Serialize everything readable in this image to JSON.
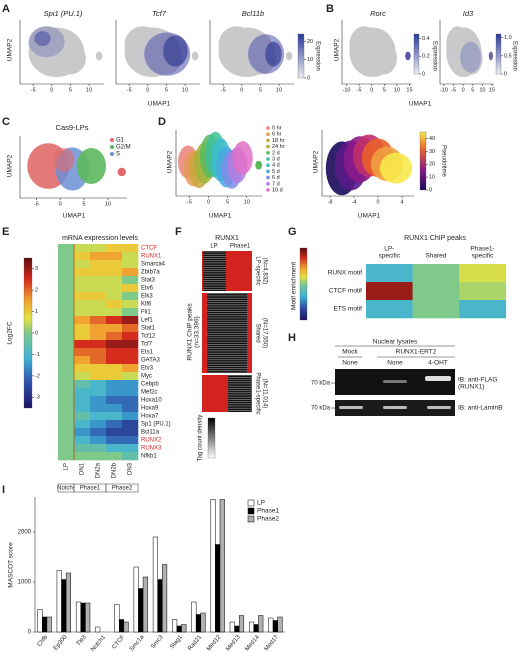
{
  "panels": {
    "A": {
      "letter": "A",
      "ylabel": "UMAP2",
      "xlabel": "UMAP1",
      "plots": [
        {
          "title": "Spi1 (PU.1)",
          "xlim": [
            -8,
            14
          ],
          "xticks": [
            -5,
            0,
            5,
            10
          ]
        },
        {
          "title": "Tcf7",
          "xlim": [
            -8,
            14
          ],
          "xticks": [
            -5,
            0,
            5,
            10
          ]
        },
        {
          "title": "Bcl11b",
          "xlim": [
            -8,
            14
          ],
          "xticks": [
            -5,
            0,
            5,
            10
          ]
        }
      ],
      "colorbar": {
        "label": "Expression",
        "lim": [
          0,
          24
        ],
        "ticks": [
          0,
          10,
          20
        ]
      }
    },
    "B": {
      "letter": "B",
      "ylabel": "UMAP2",
      "xlabel": "UMAP1",
      "plots": [
        {
          "title": "Rorc",
          "xlim": [
            -11,
            16
          ],
          "xticks": [
            -10,
            -5,
            0,
            5,
            10,
            15
          ],
          "colorbar": {
            "label": "Expression",
            "lim": [
              0,
              0.45
            ],
            "ticks": [
              0,
              0.2,
              0.4
            ]
          }
        },
        {
          "title": "Id3",
          "xlim": [
            -11,
            16
          ],
          "xticks": [
            -10,
            -5,
            0,
            5,
            10,
            15
          ],
          "colorbar": {
            "label": "Expression",
            "lim": [
              0,
              1.1
            ],
            "ticks": [
              0,
              0.5,
              {
                "value": 1,
                "label": "1.0"
              }
            ]
          }
        }
      ]
    },
    "C": {
      "letter": "C",
      "title": "Cas9-LPs",
      "ylabel": "UMAP2",
      "xlabel": "UMAP1",
      "xlim": [
        -8,
        14
      ],
      "xticks": [
        -5,
        0,
        5,
        10
      ],
      "legend": [
        {
          "name": "G1",
          "color": "#e06a6a"
        },
        {
          "name": "G2/M",
          "color": "#5cb85c"
        },
        {
          "name": "S",
          "color": "#6b8fd6"
        }
      ]
    },
    "D": {
      "letter": "D",
      "plots": [
        {
          "ylabel": "UMAP2",
          "xlabel": "UMAP1",
          "xlim": [
            -8,
            14
          ],
          "xticks": [
            -5,
            0,
            5,
            10
          ],
          "legend": [
            {
              "name": "0 hr",
              "color": "#e8837a"
            },
            {
              "name": "6 hr",
              "color": "#e89a5a"
            },
            {
              "name": "18 hr",
              "color": "#c9a83a"
            },
            {
              "name": "24 hr",
              "color": "#9fb43c"
            },
            {
              "name": "2 d",
              "color": "#5cb85c"
            },
            {
              "name": "3 d",
              "color": "#3fbf9a"
            },
            {
              "name": "4 d",
              "color": "#3cbccc"
            },
            {
              "name": "5 d",
              "color": "#4aa8e0"
            },
            {
              "name": "6 d",
              "color": "#7d8ee8"
            },
            {
              "name": "7 d",
              "color": "#b57be0"
            },
            {
              "name": "10 d",
              "color": "#e070c8"
            }
          ]
        },
        {
          "ylabel": "UMAP2",
          "xlabel": "UMAP1",
          "xlim": [
            -9,
            6
          ],
          "xticks": [
            -8,
            -4,
            0,
            4
          ],
          "colorbar": {
            "label": "Pseudotime",
            "lim": [
              0,
              45
            ],
            "ticks": [
              0,
              10,
              20,
              30,
              40
            ]
          }
        }
      ]
    },
    "E": {
      "letter": "E",
      "title": "mRNA expression levels",
      "columns": [
        "LP",
        "DN1",
        "DN2a",
        "DN2b",
        "DN3"
      ],
      "groups": [
        {
          "name": "Notch-",
          "span": 1
        },
        {
          "name": "Phase1",
          "span": 2
        },
        {
          "name": "Phase2",
          "span": 2
        }
      ],
      "rows": [
        {
          "gene": "CTCF",
          "color": "#d62728",
          "values": [
            0,
            0.5,
            0.5,
            1,
            1
          ]
        },
        {
          "gene": "RUNX1",
          "color": "#d62728",
          "values": [
            0,
            1,
            1.5,
            1.5,
            0.5
          ]
        },
        {
          "gene": "Smarca4",
          "values": [
            0,
            0.5,
            1,
            1,
            0.5
          ]
        },
        {
          "gene": "Zbtb7a",
          "values": [
            0,
            1,
            1,
            1,
            1.5
          ]
        },
        {
          "gene": "Stat3",
          "values": [
            0,
            0.5,
            0.5,
            0.5,
            0
          ]
        },
        {
          "gene": "Etv6",
          "values": [
            0,
            0.5,
            0.5,
            0.5,
            1
          ]
        },
        {
          "gene": "Elk3",
          "values": [
            0,
            1,
            1,
            0.5,
            0
          ]
        },
        {
          "gene": "Klf6",
          "values": [
            0,
            0.5,
            0.5,
            1,
            0.5
          ]
        },
        {
          "gene": "Fli1",
          "values": [
            0,
            0.5,
            0.5,
            0.5,
            0
          ]
        },
        {
          "gene": "Lef1",
          "values": [
            0,
            1.5,
            2,
            2.5,
            3
          ]
        },
        {
          "gene": "Stat1",
          "values": [
            0,
            1,
            1.5,
            1.5,
            2
          ]
        },
        {
          "gene": "Tcf12",
          "values": [
            0,
            1,
            1.5,
            2,
            2.5
          ]
        },
        {
          "gene": "Tcf7",
          "values": [
            0,
            2.5,
            2.5,
            3,
            3
          ]
        },
        {
          "gene": "Ets1",
          "values": [
            0,
            2,
            2,
            2.5,
            2.5
          ]
        },
        {
          "gene": "GATA3",
          "values": [
            0,
            1.5,
            2,
            2.5,
            2.5
          ]
        },
        {
          "gene": "Etv3",
          "values": [
            0,
            1,
            1,
            1,
            1.5
          ]
        },
        {
          "gene": "Myc",
          "values": [
            0,
            0.5,
            1,
            1,
            0.5
          ]
        },
        {
          "gene": "Cebpb",
          "values": [
            0,
            -0.5,
            -1,
            -1.5,
            -1.5
          ]
        },
        {
          "gene": "Mef2c",
          "values": [
            0,
            -1,
            -1,
            -1.5,
            -1.5
          ]
        },
        {
          "gene": "Hoxa10",
          "values": [
            0,
            -1,
            -1.5,
            -2,
            -2
          ]
        },
        {
          "gene": "Hoxa9",
          "values": [
            0,
            -1,
            -1.5,
            -1.5,
            -2
          ]
        },
        {
          "gene": "Hoxa7",
          "values": [
            0,
            -0.5,
            -1,
            -1,
            -1.5
          ]
        },
        {
          "gene": "Sp1 (PU.1)",
          "values": [
            0,
            -1,
            -1.5,
            -2,
            -2.5
          ]
        },
        {
          "gene": "Bcl11a",
          "values": [
            0,
            -1.5,
            -2,
            -2.5,
            -2.5
          ]
        },
        {
          "gene": "RUNX2",
          "color": "#d62728",
          "values": [
            0,
            -1,
            -1.5,
            -2,
            -2
          ]
        },
        {
          "gene": "RUNX3",
          "color": "#d62728",
          "values": [
            0,
            -0.5,
            -0.5,
            -1,
            -1
          ]
        },
        {
          "gene": "Nfkb1",
          "values": [
            0,
            0,
            0,
            0,
            -0.5
          ]
        }
      ],
      "colorbar": {
        "label": "Log2FC",
        "lim": [
          -3.5,
          3.5
        ],
        "ticks": [
          3,
          2,
          1,
          0,
          -1,
          -2,
          -3
        ]
      }
    },
    "F": {
      "letter": "F",
      "title": "RUNX1",
      "columns": [
        "LP",
        "Phase1"
      ],
      "ylabel": "RUNX1 ChIP peaks",
      "ylabel_n": "(n=33,396)",
      "sections": [
        {
          "name": "LP-specific",
          "n": "(N=4,832)"
        },
        {
          "name": "Shared",
          "n": "(N=17,550)"
        },
        {
          "name": "Phase1-specific",
          "n": "(N=11,014)"
        }
      ],
      "colorbar_label": "Tag count density"
    },
    "G": {
      "letter": "G",
      "title": "RUNX1 ChIP peaks",
      "columns": [
        [
          "LP-",
          "specific"
        ],
        [
          "Shared"
        ],
        [
          "Phase1-",
          "specific"
        ]
      ],
      "rows": [
        {
          "name": "RUNX motif",
          "values": [
            -1,
            0,
            0.6
          ]
        },
        {
          "name": "CTCF motif",
          "values": [
            3,
            0,
            0.3
          ]
        },
        {
          "name": "ETS motif",
          "values": [
            -1,
            0,
            -1
          ]
        }
      ],
      "colorbar": {
        "label": "Motif enrichment",
        "lim": [
          -3.5,
          3.5
        ]
      }
    },
    "H": {
      "letter": "H",
      "title": "Nuclear lysates",
      "groups": [
        "Mock",
        "RUNX1-ERT2"
      ],
      "lanes": [
        "None",
        "None",
        "4-OHT"
      ],
      "blots": [
        {
          "marker": "70 kDa",
          "label": [
            "IB: anti-FLAG",
            "(RUNX1)"
          ]
        },
        {
          "marker": "70 kDa",
          "label": [
            "IB: anti-LaminB"
          ]
        }
      ]
    },
    "I": {
      "letter": "I"
    }
  },
  "chart_data": {
    "type": "bar",
    "ylabel": "MASCOT score",
    "categories": [
      "Chfb",
      "Ep300",
      "Tle3",
      "Notch1",
      "CTCF",
      "Smc1a",
      "Smc3",
      "Stag1",
      "Rad21",
      "Med12",
      "Med13",
      "Med14",
      "Med17"
    ],
    "series": [
      {
        "name": "LP",
        "color": "#ffffff",
        "values": [
          450,
          1230,
          600,
          100,
          550,
          1300,
          1900,
          250,
          600,
          2650,
          200,
          200,
          280
        ]
      },
      {
        "name": "Phase1",
        "color": "#000000",
        "values": [
          300,
          1050,
          580,
          0,
          250,
          870,
          1050,
          120,
          350,
          1750,
          120,
          150,
          230
        ]
      },
      {
        "name": "Phase2",
        "color": "#b0b0b0",
        "values": [
          300,
          1180,
          580,
          0,
          200,
          1100,
          1350,
          150,
          380,
          2650,
          330,
          330,
          300
        ]
      }
    ],
    "ylim": [
      0,
      2700
    ],
    "yticks": [
      0,
      1000,
      2000
    ]
  }
}
